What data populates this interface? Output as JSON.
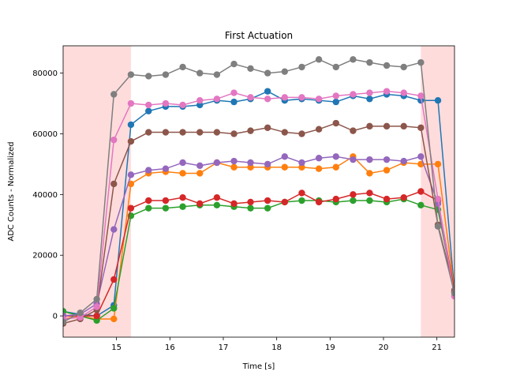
{
  "chart_data": {
    "type": "line",
    "title": "First Actuation",
    "xlabel": "Time [s]",
    "ylabel": "ADC Counts - Normalized",
    "xlim": [
      14.0,
      21.33
    ],
    "ylim": [
      -7000,
      89000
    ],
    "xticks": [
      15,
      16,
      17,
      18,
      19,
      20,
      21
    ],
    "yticks": [
      0,
      20000,
      40000,
      60000,
      80000
    ],
    "ytick_labels": [
      "0",
      "20000",
      "40000",
      "60000",
      "80000"
    ],
    "grid": false,
    "shaded_regions": [
      {
        "x0": 14.0,
        "x1": 15.27,
        "color": "#ffdcdc"
      },
      {
        "x0": 20.7,
        "x1": 21.33,
        "color": "#ffdcdc"
      }
    ],
    "x": [
      14.0,
      14.32,
      14.63,
      14.95,
      15.27,
      15.6,
      15.92,
      16.24,
      16.56,
      16.88,
      17.2,
      17.51,
      17.83,
      18.15,
      18.47,
      18.79,
      19.11,
      19.43,
      19.74,
      20.06,
      20.38,
      20.7,
      21.02,
      21.33
    ],
    "series": [
      {
        "color": "#1f77b4",
        "values": [
          1500,
          500,
          0,
          3500,
          63000,
          67500,
          69000,
          69000,
          69500,
          71000,
          70500,
          71500,
          74000,
          71000,
          71500,
          71000,
          70500,
          72500,
          71500,
          73000,
          72500,
          71000,
          71000,
          8000
        ]
      },
      {
        "color": "#ff7f0e",
        "values": [
          -1000,
          0,
          -1000,
          -1000,
          43500,
          47000,
          47500,
          47000,
          47000,
          50500,
          49000,
          49000,
          49000,
          49000,
          49000,
          48500,
          49000,
          52500,
          47000,
          48000,
          50500,
          50000,
          50000,
          8000
        ]
      },
      {
        "color": "#2ca02c",
        "values": [
          1500,
          0,
          -1500,
          2500,
          33000,
          35500,
          35500,
          36000,
          36500,
          36500,
          36000,
          35500,
          35500,
          37500,
          38000,
          38000,
          37500,
          38000,
          38000,
          37500,
          38500,
          36500,
          35000,
          8000
        ]
      },
      {
        "color": "#d62728",
        "values": [
          0,
          0,
          0,
          12000,
          35500,
          38000,
          38000,
          39000,
          37000,
          39000,
          37000,
          37500,
          38000,
          37500,
          40500,
          37500,
          38500,
          40000,
          40500,
          38500,
          39000,
          41000,
          38000,
          8000
        ]
      },
      {
        "color": "#9467bd",
        "values": [
          0,
          500,
          4000,
          28500,
          46500,
          48000,
          48500,
          50500,
          49500,
          50500,
          51000,
          50500,
          50000,
          52500,
          50500,
          52000,
          52500,
          51500,
          51500,
          51500,
          51000,
          52500,
          37000,
          6500
        ]
      },
      {
        "color": "#8c564b",
        "values": [
          -2500,
          -1000,
          2000,
          43500,
          57500,
          60500,
          60500,
          60500,
          60500,
          60500,
          60000,
          61000,
          62000,
          60500,
          60000,
          61500,
          63500,
          61000,
          62500,
          62500,
          62500,
          62000,
          30000,
          8500
        ]
      },
      {
        "color": "#e377c2",
        "values": [
          -1000,
          -500,
          3000,
          58000,
          70000,
          69500,
          70000,
          69500,
          71000,
          71500,
          73500,
          72000,
          71500,
          72000,
          72000,
          71500,
          72500,
          73000,
          73500,
          74000,
          73500,
          72500,
          38500,
          6500
        ]
      },
      {
        "color": "#7f7f7f",
        "values": [
          -2000,
          1000,
          5500,
          73000,
          79500,
          79000,
          79500,
          82000,
          80000,
          79500,
          83000,
          81500,
          80000,
          80500,
          82000,
          84500,
          82000,
          84500,
          83500,
          82500,
          82000,
          83500,
          29500,
          7500
        ]
      }
    ]
  }
}
